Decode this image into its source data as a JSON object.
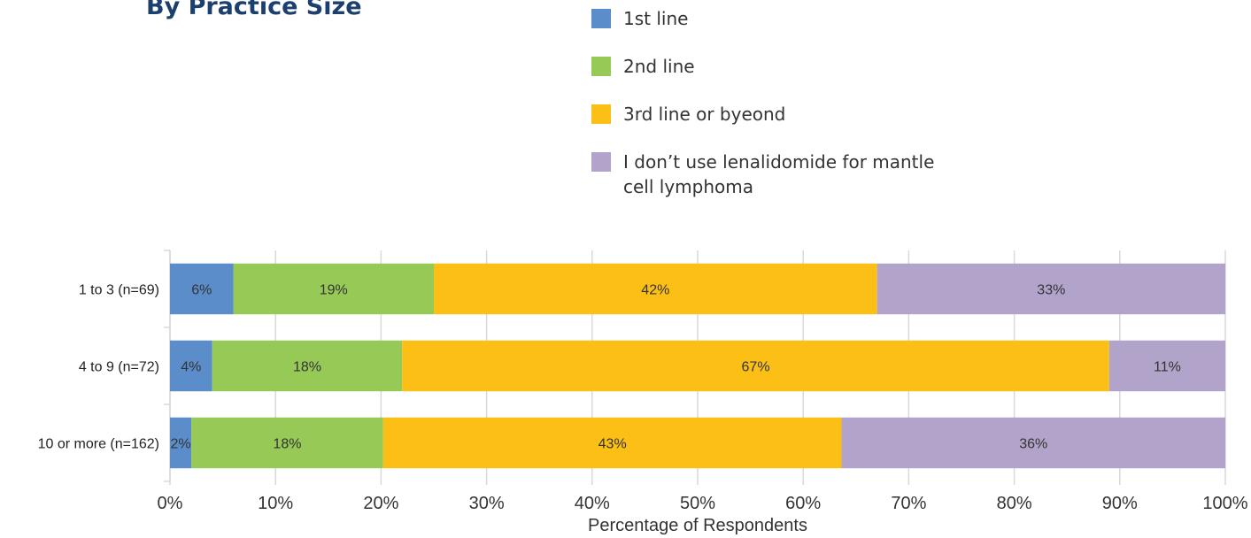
{
  "chart_data": {
    "type": "bar",
    "orientation": "horizontal",
    "stacked": true,
    "title": "By Practice Size",
    "xlabel": "Percentage of Respondents",
    "ylabel": "",
    "xlim": [
      0,
      100
    ],
    "x_ticks": [
      "0%",
      "10%",
      "20%",
      "30%",
      "40%",
      "50%",
      "60%",
      "70%",
      "80%",
      "90%",
      "100%"
    ],
    "grid": "vertical",
    "legend_position": "top",
    "categories": [
      "1 to 3 (n=69)",
      "4 to 9 (n=72)",
      "10 or more (n=162)"
    ],
    "series": [
      {
        "name": "1st line",
        "color": "#5b8dcb",
        "values": [
          6,
          4,
          2
        ],
        "labels": [
          "6%",
          "4%",
          "2%"
        ]
      },
      {
        "name": "2nd line",
        "color": "#97c957",
        "values": [
          19,
          18,
          18
        ],
        "labels": [
          "19%",
          "18%",
          "18%"
        ]
      },
      {
        "name": "3rd line or byeond",
        "color": "#fbbf16",
        "values": [
          42,
          67,
          43
        ],
        "labels": [
          "42%",
          "67%",
          "43%"
        ]
      },
      {
        "name": "I don’t use lenalidomide for mantle cell lymphoma",
        "color": "#b1a3c9",
        "values": [
          33,
          11,
          36
        ],
        "labels": [
          "33%",
          "11%",
          "36%"
        ]
      }
    ]
  }
}
